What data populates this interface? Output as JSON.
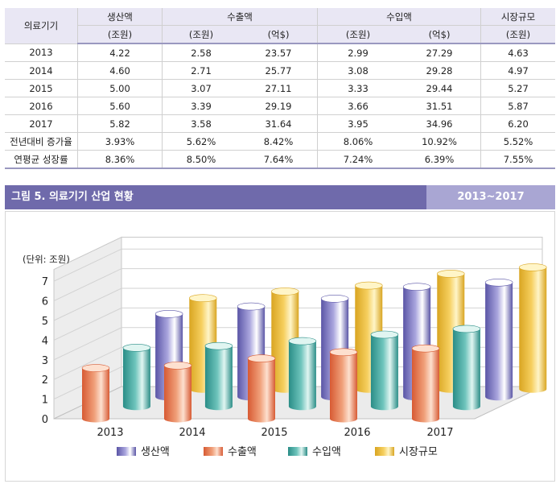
{
  "table": {
    "row_header": "의료기기",
    "groups": [
      {
        "name": "생산액",
        "units": [
          "(조원)"
        ]
      },
      {
        "name": "수출액",
        "units": [
          "(조원)",
          "(억$)"
        ]
      },
      {
        "name": "수입액",
        "units": [
          "(조원)",
          "(억$)"
        ]
      },
      {
        "name": "시장규모",
        "units": [
          "(조원)"
        ]
      }
    ],
    "rows": [
      {
        "label": "2013",
        "values": [
          "4.22",
          "2.58",
          "23.57",
          "2.99",
          "27.29",
          "4.63"
        ]
      },
      {
        "label": "2014",
        "values": [
          "4.60",
          "2.71",
          "25.77",
          "3.08",
          "29.28",
          "4.97"
        ]
      },
      {
        "label": "2015",
        "values": [
          "5.00",
          "3.07",
          "27.11",
          "3.33",
          "29.44",
          "5.27"
        ]
      },
      {
        "label": "2016",
        "values": [
          "5.60",
          "3.39",
          "29.19",
          "3.66",
          "31.51",
          "5.87"
        ]
      },
      {
        "label": "2017",
        "values": [
          "5.82",
          "3.58",
          "31.64",
          "3.95",
          "34.96",
          "6.20"
        ]
      },
      {
        "label": "전년대비 증가율",
        "values": [
          "3.93%",
          "5.62%",
          "8.42%",
          "8.06%",
          "10.92%",
          "5.52%"
        ]
      },
      {
        "label": "연평균 성장률",
        "values": [
          "8.36%",
          "8.50%",
          "7.64%",
          "7.24%",
          "6.39%",
          "7.55%"
        ]
      }
    ]
  },
  "figure": {
    "title": "그림 5. 의료기기 산업 현황",
    "period": "2013~2017"
  },
  "chart_data": {
    "type": "bar",
    "title": "그림 5. 의료기기 산업 현황",
    "unit_label": "(단위: 조원)",
    "categories": [
      "2013",
      "2014",
      "2015",
      "2016",
      "2017"
    ],
    "series": [
      {
        "name": "생산액",
        "values": [
          4.22,
          4.6,
          5.0,
          5.6,
          5.82
        ]
      },
      {
        "name": "수출액",
        "values": [
          2.58,
          2.71,
          3.07,
          3.39,
          3.58
        ]
      },
      {
        "name": "수입액",
        "values": [
          2.99,
          3.08,
          3.33,
          3.66,
          3.95
        ]
      },
      {
        "name": "시장규모",
        "values": [
          4.63,
          4.97,
          5.27,
          5.87,
          6.2
        ]
      }
    ],
    "yticks": [
      "0",
      "1",
      "2",
      "3",
      "4",
      "5",
      "6",
      "7"
    ],
    "ylim": [
      0,
      7
    ],
    "legend_position": "bottom",
    "colors": {
      "생산액": [
        "#5a55a6",
        "#aaa6de",
        "#ffffff"
      ],
      "수출액": [
        "#d75a33",
        "#f0a07a",
        "#fde0cf"
      ],
      "수입액": [
        "#2a8d87",
        "#6ec4bc",
        "#e0f5f1"
      ],
      "시장규모": [
        "#d9a521",
        "#f6cf5f",
        "#fff5c8"
      ]
    }
  }
}
